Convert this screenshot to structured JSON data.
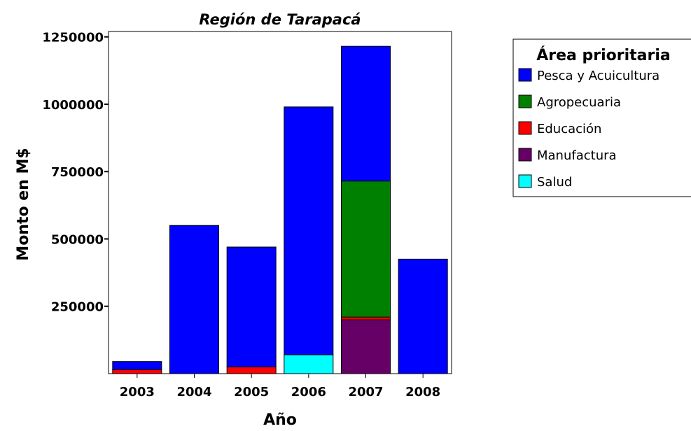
{
  "chart_data": {
    "type": "bar",
    "stacked": true,
    "title": "Región de Tarapacá",
    "xlabel": "Año",
    "ylabel": "Monto en M$",
    "categories": [
      "2003",
      "2004",
      "2005",
      "2006",
      "2007",
      "2008"
    ],
    "yticks": [
      250000,
      500000,
      750000,
      1000000,
      1250000
    ],
    "ytick_labels": [
      "250000",
      "500000",
      "750000",
      "1000000",
      "1250000"
    ],
    "ylim": [
      0,
      1270000
    ],
    "grid": false,
    "legend_position": "top-right",
    "legend_title": "Área prioritaria",
    "series": [
      {
        "name": "Salud",
        "color": "#00ffff",
        "values": [
          0,
          0,
          0,
          70000,
          0,
          0
        ]
      },
      {
        "name": "Manufactura",
        "color": "#660066",
        "values": [
          0,
          0,
          0,
          0,
          200000,
          0
        ]
      },
      {
        "name": "Educación",
        "color": "#ff0000",
        "values": [
          15000,
          0,
          25000,
          0,
          10000,
          0
        ]
      },
      {
        "name": "Agropecuaria",
        "color": "#008000",
        "values": [
          0,
          0,
          0,
          0,
          505000,
          0
        ]
      },
      {
        "name": "Pesca y Acuicultura",
        "color": "#0000ff",
        "values": [
          30000,
          550000,
          445000,
          920000,
          500000,
          425000
        ]
      }
    ],
    "legend_order": [
      "Pesca y Acuicultura",
      "Agropecuaria",
      "Educación",
      "Manufactura",
      "Salud"
    ]
  }
}
